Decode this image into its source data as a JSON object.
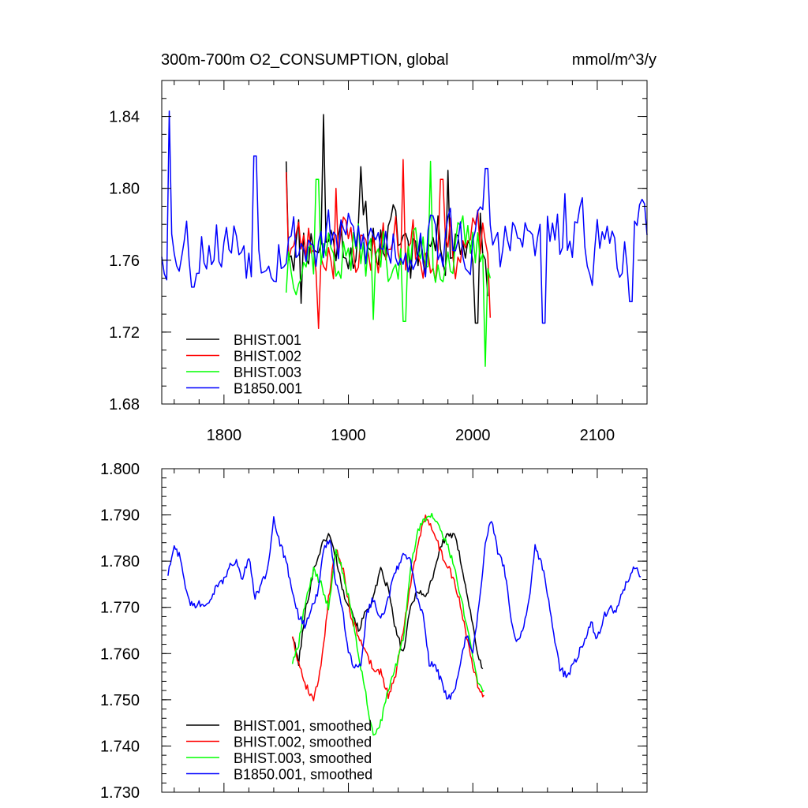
{
  "chart_data": [
    {
      "type": "line",
      "title": "300m-700m O2_CONSUMPTION, global",
      "units": "mmol/m^3/y",
      "xlim": [
        1750,
        2140
      ],
      "ylim": [
        1.68,
        1.86
      ],
      "xticks": [
        1800,
        1900,
        2000,
        2100
      ],
      "xtick_labels": [
        "1800",
        "1900",
        "2000",
        "2100"
      ],
      "yticks": [
        1.68,
        1.72,
        1.76,
        1.8,
        1.84
      ],
      "ytick_labels": [
        "1.68",
        "1.72",
        "1.76",
        "1.80",
        "1.84"
      ],
      "legend_position": "bottom-left",
      "series": [
        {
          "name": "BHIST.001",
          "color": "#000000",
          "x_start": 1850,
          "x_end": 2012,
          "mean": 1.772,
          "amplitude": 0.018,
          "seed": 11,
          "anchors": [
            [
              1850,
              1.815
            ],
            [
              1862,
              1.736
            ],
            [
              1880,
              1.841
            ],
            [
              1910,
              1.812
            ],
            [
              1950,
              1.75
            ],
            [
              1980,
              1.81
            ],
            [
              2003,
              1.725
            ],
            [
              2012,
              1.74
            ]
          ]
        },
        {
          "name": "BHIST.002",
          "color": "#ff0000",
          "x_start": 1850,
          "x_end": 2015,
          "mean": 1.768,
          "amplitude": 0.018,
          "seed": 23,
          "anchors": [
            [
              1850,
              1.809
            ],
            [
              1876,
              1.722
            ],
            [
              1890,
              1.8
            ],
            [
              1944,
              1.816
            ],
            [
              1975,
              1.805
            ],
            [
              2015,
              1.728
            ]
          ]
        },
        {
          "name": "BHIST.003",
          "color": "#00ff00",
          "x_start": 1850,
          "x_end": 2014,
          "mean": 1.764,
          "amplitude": 0.018,
          "seed": 37,
          "anchors": [
            [
              1850,
              1.742
            ],
            [
              1875,
              1.805
            ],
            [
              1920,
              1.727
            ],
            [
              1945,
              1.726
            ],
            [
              1966,
              1.815
            ],
            [
              2010,
              1.701
            ],
            [
              2014,
              1.75
            ]
          ]
        },
        {
          "name": "B1850.001",
          "color": "#0000ff",
          "x_start": 1750,
          "x_end": 2140,
          "mean": 1.77,
          "amplitude": 0.019,
          "seed": 53,
          "anchors": [
            [
              1756,
              1.843
            ],
            [
              1775,
              1.745
            ],
            [
              1818,
              1.75
            ],
            [
              1825,
              1.818
            ],
            [
              2011,
              1.811
            ],
            [
              2057,
              1.725
            ],
            [
              2074,
              1.797
            ],
            [
              2127,
              1.737
            ],
            [
              2140,
              1.774
            ]
          ]
        }
      ]
    },
    {
      "type": "line",
      "xlim": [
        1750,
        2140
      ],
      "ylim": [
        1.73,
        1.8
      ],
      "xticks": [
        1800,
        1900,
        2000,
        2100
      ],
      "yticks": [
        1.73,
        1.74,
        1.75,
        1.76,
        1.77,
        1.78,
        1.79,
        1.8
      ],
      "ytick_labels": [
        "1.730",
        "1.740",
        "1.750",
        "1.760",
        "1.770",
        "1.780",
        "1.790",
        "1.800"
      ],
      "legend_position": "bottom-left",
      "series": [
        {
          "name": "BHIST.001, smoothed",
          "color": "#000000",
          "seed": 101,
          "x": [
            1855,
            1860,
            1866,
            1872,
            1878,
            1884,
            1890,
            1896,
            1902,
            1908,
            1914,
            1920,
            1926,
            1932,
            1938,
            1944,
            1950,
            1956,
            1962,
            1968,
            1974,
            1980,
            1986,
            1992,
            1998,
            2004,
            2008
          ],
          "y": [
            1.764,
            1.758,
            1.77,
            1.778,
            1.783,
            1.786,
            1.781,
            1.773,
            1.77,
            1.765,
            1.769,
            1.772,
            1.778,
            1.774,
            1.765,
            1.76,
            1.77,
            1.774,
            1.772,
            1.777,
            1.783,
            1.786,
            1.785,
            1.778,
            1.769,
            1.76,
            1.756
          ]
        },
        {
          "name": "BHIST.002, smoothed",
          "color": "#ff0000",
          "seed": 202,
          "x": [
            1855,
            1860,
            1866,
            1872,
            1878,
            1884,
            1890,
            1896,
            1902,
            1908,
            1914,
            1920,
            1926,
            1932,
            1938,
            1944,
            1950,
            1956,
            1962,
            1968,
            1974,
            1980,
            1986,
            1992,
            1998,
            2004,
            2009
          ],
          "y": [
            1.764,
            1.758,
            1.753,
            1.75,
            1.757,
            1.772,
            1.783,
            1.778,
            1.768,
            1.764,
            1.76,
            1.757,
            1.756,
            1.751,
            1.755,
            1.765,
            1.775,
            1.784,
            1.79,
            1.787,
            1.782,
            1.779,
            1.775,
            1.768,
            1.76,
            1.753,
            1.751
          ]
        },
        {
          "name": "BHIST.003, smoothed",
          "color": "#00ff00",
          "seed": 303,
          "x": [
            1855,
            1860,
            1866,
            1872,
            1878,
            1884,
            1890,
            1896,
            1902,
            1908,
            1914,
            1920,
            1926,
            1932,
            1938,
            1944,
            1950,
            1956,
            1962,
            1968,
            1974,
            1980,
            1986,
            1992,
            1998,
            2004,
            2009
          ],
          "y": [
            1.758,
            1.762,
            1.772,
            1.778,
            1.775,
            1.77,
            1.783,
            1.777,
            1.77,
            1.76,
            1.751,
            1.742,
            1.745,
            1.752,
            1.757,
            1.763,
            1.778,
            1.787,
            1.789,
            1.79,
            1.787,
            1.783,
            1.778,
            1.77,
            1.762,
            1.754,
            1.752
          ]
        },
        {
          "name": "B1850.001, smoothed",
          "color": "#0000ff",
          "seed": 404,
          "x": [
            1755,
            1760,
            1765,
            1770,
            1775,
            1780,
            1785,
            1790,
            1795,
            1800,
            1805,
            1810,
            1815,
            1820,
            1825,
            1830,
            1835,
            1840,
            1845,
            1850,
            1855,
            1860,
            1865,
            1870,
            1875,
            1880,
            1885,
            1890,
            1895,
            1900,
            1905,
            1910,
            1915,
            1920,
            1925,
            1930,
            1935,
            1940,
            1945,
            1950,
            1955,
            1960,
            1965,
            1970,
            1975,
            1980,
            1985,
            1990,
            1995,
            2000,
            2005,
            2010,
            2015,
            2020,
            2025,
            2030,
            2035,
            2040,
            2045,
            2050,
            2055,
            2060,
            2065,
            2070,
            2075,
            2080,
            2085,
            2090,
            2095,
            2100,
            2105,
            2110,
            2115,
            2120,
            2125,
            2130,
            2135
          ],
          "y": [
            1.777,
            1.783,
            1.781,
            1.773,
            1.77,
            1.771,
            1.77,
            1.772,
            1.775,
            1.776,
            1.779,
            1.78,
            1.776,
            1.781,
            1.772,
            1.775,
            1.778,
            1.789,
            1.784,
            1.78,
            1.773,
            1.768,
            1.766,
            1.77,
            1.773,
            1.782,
            1.785,
            1.775,
            1.77,
            1.76,
            1.757,
            1.758,
            1.769,
            1.772,
            1.768,
            1.77,
            1.775,
            1.779,
            1.782,
            1.78,
            1.772,
            1.768,
            1.758,
            1.757,
            1.754,
            1.75,
            1.752,
            1.758,
            1.764,
            1.76,
            1.77,
            1.784,
            1.789,
            1.782,
            1.779,
            1.769,
            1.762,
            1.765,
            1.771,
            1.783,
            1.78,
            1.773,
            1.764,
            1.757,
            1.755,
            1.757,
            1.76,
            1.763,
            1.767,
            1.763,
            1.768,
            1.77,
            1.769,
            1.773,
            1.776,
            1.779,
            1.776
          ]
        }
      ]
    }
  ]
}
